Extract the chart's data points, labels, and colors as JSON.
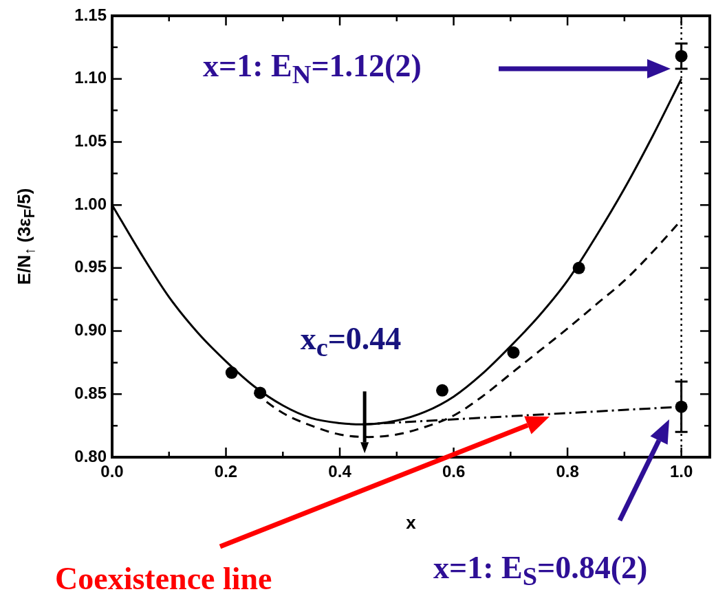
{
  "chart_data": {
    "type": "line",
    "xlabel": "x",
    "ylabel": "E/N$_{↑}$   (3ε$_{F}$/5)",
    "xlim": [
      0,
      1.05
    ],
    "ylim": [
      0.8,
      1.15
    ],
    "xticks": [
      {
        "value": 0,
        "label": "0.0"
      },
      {
        "value": 0.1,
        "label": null
      },
      {
        "value": 0.2,
        "label": "0.2"
      },
      {
        "value": 0.3,
        "label": null
      },
      {
        "value": 0.4,
        "label": "0.4"
      },
      {
        "value": 0.5,
        "label": null
      },
      {
        "value": 0.6,
        "label": "0.6"
      },
      {
        "value": 0.7,
        "label": null
      },
      {
        "value": 0.8,
        "label": "0.8"
      },
      {
        "value": 0.9,
        "label": null
      },
      {
        "value": 1,
        "label": "1.0"
      }
    ],
    "yticks": [
      {
        "value": 0.8,
        "label": "0.80"
      },
      {
        "value": 0.825,
        "label": null
      },
      {
        "value": 0.85,
        "label": "0.85"
      },
      {
        "value": 0.875,
        "label": null
      },
      {
        "value": 0.9,
        "label": "0.90"
      },
      {
        "value": 0.925,
        "label": null
      },
      {
        "value": 0.95,
        "label": "0.95"
      },
      {
        "value": 0.975,
        "label": null
      },
      {
        "value": 1,
        "label": "1.00"
      },
      {
        "value": 1.025,
        "label": null
      },
      {
        "value": 1.05,
        "label": "1.05"
      },
      {
        "value": 1.075,
        "label": null
      },
      {
        "value": 1.1,
        "label": "1.10"
      },
      {
        "value": 1.125,
        "label": null
      },
      {
        "value": 1.15,
        "label": "1.15"
      }
    ],
    "series": [
      {
        "color": "#000000",
        "line_style": "solid",
        "marker": "none",
        "x": [
          0,
          0.05,
          0.1,
          0.15,
          0.2,
          0.25,
          0.3,
          0.35,
          0.4,
          0.44,
          0.5,
          0.55,
          0.6,
          0.65,
          0.7,
          0.75,
          0.8,
          0.85,
          0.9,
          0.95,
          1
        ],
        "values": [
          1,
          0.962,
          0.927,
          0.899,
          0.876,
          0.856,
          0.841,
          0.831,
          0.827,
          0.826,
          0.829,
          0.836,
          0.848,
          0.866,
          0.888,
          0.912,
          0.94,
          0.975,
          1.013,
          1.055,
          1.1
        ]
      },
      {
        "color": "#000000",
        "line_style": "dashed",
        "marker": "none",
        "x": [
          0.25,
          0.3,
          0.35,
          0.4,
          0.45,
          0.5,
          0.55,
          0.6,
          0.65,
          0.7,
          0.75,
          0.8,
          0.85,
          0.9,
          0.95,
          1
        ],
        "values": [
          0.851,
          0.835,
          0.825,
          0.818,
          0.816,
          0.818,
          0.824,
          0.833,
          0.848,
          0.866,
          0.884,
          0.902,
          0.921,
          0.94,
          0.963,
          0.988
        ]
      },
      {
        "color": "#000000",
        "line_style": "dashdot",
        "marker": "none",
        "x": [
          0.44,
          1
        ],
        "values": [
          0.826,
          0.84
        ]
      },
      {
        "type": "scatter",
        "color": "#000000",
        "marker": "circle",
        "x": [
          0.21,
          0.26,
          0.58,
          0.705,
          0.82,
          1,
          1
        ],
        "values": [
          0.867,
          0.851,
          0.853,
          0.883,
          0.95,
          1.118,
          0.84
        ],
        "errors": [
          null,
          null,
          null,
          null,
          null,
          0.01,
          0.02
        ]
      }
    ],
    "ref_lines": [
      {
        "axis": "x",
        "value": 1,
        "line_style": "dotted",
        "color": "#000000"
      }
    ],
    "annotations": [
      "x=1: E$_{N}$=1.12(2)",
      {
        "text": "x$_{c}$=0.44",
        "x": 0.44,
        "y": 0.826
      },
      "Coexistence line",
      "x=1: E$_{S}$=0.84(2)"
    ]
  }
}
